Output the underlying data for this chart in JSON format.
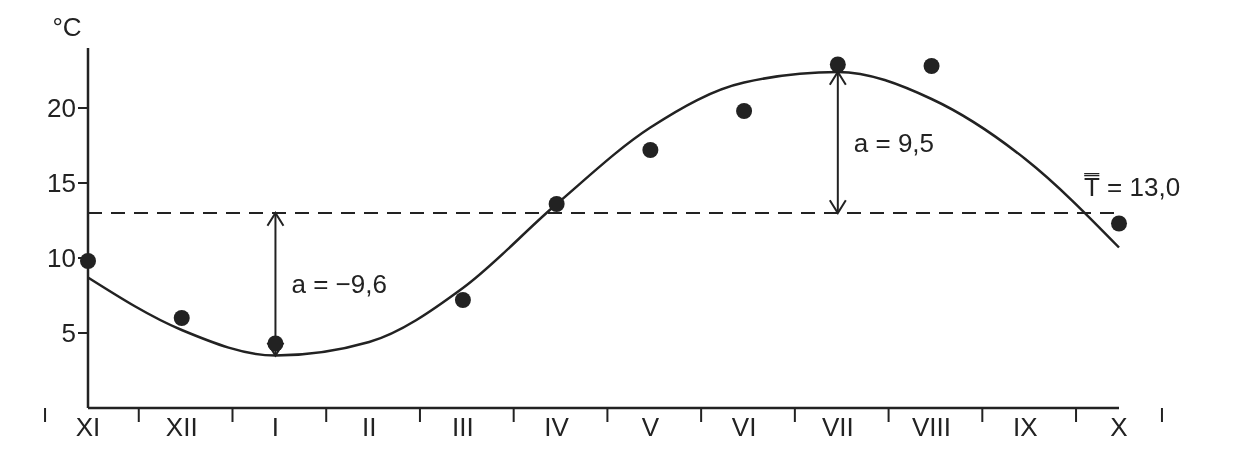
{
  "chart_data": {
    "type": "scatter",
    "ylabel": "°C",
    "categories": [
      "XI",
      "XII",
      "I",
      "II",
      "III",
      "IV",
      "V",
      "VI",
      "VII",
      "VIII",
      "IX",
      "X"
    ],
    "ylim": [
      0,
      24
    ],
    "yticks": [
      5,
      10,
      15,
      20
    ],
    "series": [
      {
        "color": "#222222",
        "marker": "circle",
        "values": [
          9.8,
          6.0,
          4.3,
          null,
          7.2,
          13.6,
          17.2,
          19.8,
          22.9,
          22.8,
          null,
          12.3
        ]
      },
      {
        "type": "line",
        "color": "#222222",
        "marker": "none",
        "line_style": "solid",
        "values": [
          8.7,
          5.2,
          3.5,
          4.4,
          8.0,
          13.6,
          18.7,
          21.7,
          22.4,
          20.6,
          16.6,
          10.7
        ]
      }
    ],
    "ref_lines": [
      {
        "axis": "y",
        "value": 13.0,
        "label": "T̿ = 13,0",
        "line_style": "dashed",
        "color": "#222222"
      }
    ],
    "annotations": [
      {
        "text": "a = −9,6",
        "x": "I",
        "y": 3.5
      },
      {
        "text": "a = 9,5",
        "x": "VII",
        "y": 22.4
      }
    ]
  }
}
